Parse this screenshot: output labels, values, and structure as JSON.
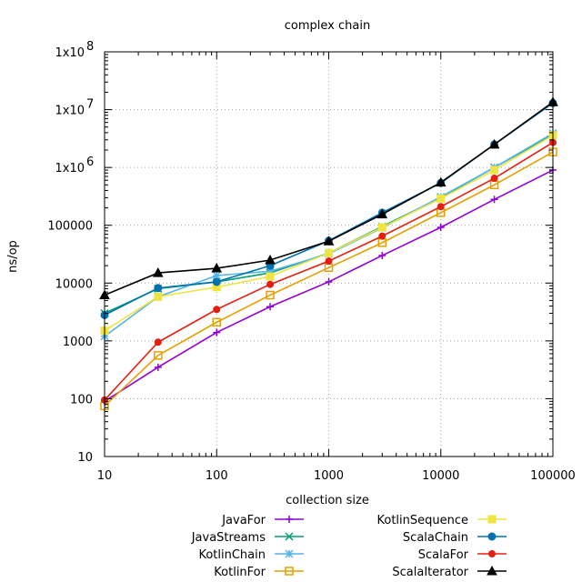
{
  "chart_data": {
    "type": "line",
    "title": "complex chain",
    "xlabel": "collection size",
    "ylabel": "ns/op",
    "x_scale": "log",
    "y_scale": "log",
    "xlim": [
      10,
      100000
    ],
    "ylim": [
      10,
      100000000
    ],
    "grid": true,
    "legend_position": "bottom",
    "x_ticks": [
      {
        "value": 10,
        "label": "10"
      },
      {
        "value": 100,
        "label": "100"
      },
      {
        "value": 1000,
        "label": "1000"
      },
      {
        "value": 10000,
        "label": "10000"
      },
      {
        "value": 100000,
        "label": "100000"
      }
    ],
    "y_ticks": [
      {
        "value": 10,
        "label": "10",
        "exp": ""
      },
      {
        "value": 100,
        "label": "100",
        "exp": ""
      },
      {
        "value": 1000,
        "label": "1000",
        "exp": ""
      },
      {
        "value": 10000,
        "label": "10000",
        "exp": ""
      },
      {
        "value": 100000,
        "label": "100000",
        "exp": ""
      },
      {
        "value": 1000000,
        "label": "1x10",
        "exp": "6"
      },
      {
        "value": 10000000,
        "label": "1x10",
        "exp": "7"
      },
      {
        "value": 100000000,
        "label": "1x10",
        "exp": "8"
      }
    ],
    "x": [
      10,
      30,
      100,
      300,
      1000,
      3000,
      10000,
      30000,
      100000
    ],
    "series": [
      {
        "name": "JavaFor",
        "color": "#9400d3",
        "marker": "plus",
        "values": [
          90,
          350,
          1400,
          3900,
          10500,
          30000,
          92000,
          280000,
          900000
        ]
      },
      {
        "name": "JavaStreams",
        "color": "#009e73",
        "marker": "cross",
        "values": [
          3000,
          8000,
          10500,
          15000,
          33000,
          95000,
          300000,
          1000000,
          3700000
        ]
      },
      {
        "name": "KotlinChain",
        "color": "#56b4e9",
        "marker": "star",
        "values": [
          1200,
          5800,
          13500,
          16000,
          32000,
          90000,
          310000,
          1000000,
          3900000
        ]
      },
      {
        "name": "KotlinFor",
        "color": "#e69f00",
        "marker": "box",
        "values": [
          75,
          560,
          2100,
          6200,
          18500,
          50000,
          165000,
          500000,
          1850000
        ]
      },
      {
        "name": "KotlinSequence",
        "color": "#f0e442",
        "marker": "boxfill",
        "values": [
          1500,
          5800,
          8500,
          13000,
          33000,
          92000,
          290000,
          900000,
          3600000
        ]
      },
      {
        "name": "ScalaChain",
        "color": "#0072b2",
        "marker": "circle",
        "values": [
          2800,
          8200,
          10500,
          20000,
          54000,
          165000,
          540000,
          2500000,
          13000000
        ]
      },
      {
        "name": "ScalaFor",
        "color": "#e51e10",
        "marker": "dot",
        "values": [
          95,
          950,
          3500,
          9500,
          24000,
          65000,
          210000,
          650000,
          2700000
        ]
      },
      {
        "name": "ScalaIterator",
        "color": "#000000",
        "marker": "triangle",
        "values": [
          6200,
          15000,
          18000,
          25000,
          53000,
          155000,
          550000,
          2500000,
          13500000
        ]
      }
    ]
  }
}
